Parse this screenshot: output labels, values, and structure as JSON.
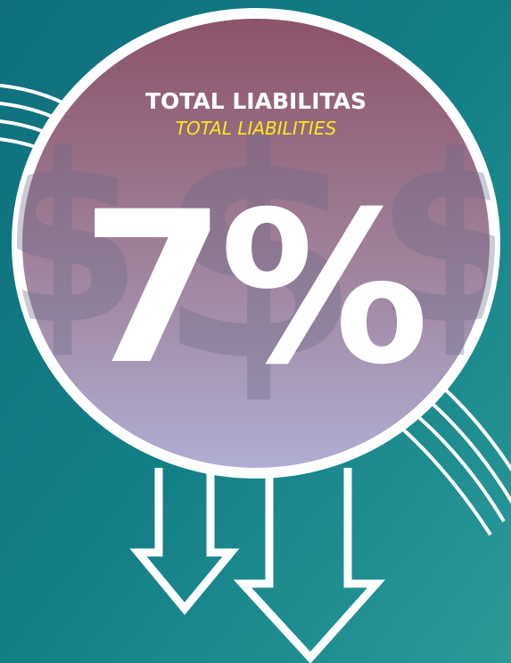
{
  "title": "TOTAL LIABILITAS",
  "subtitle": "TOTAL LIABILITIES",
  "value": "7%"
}
